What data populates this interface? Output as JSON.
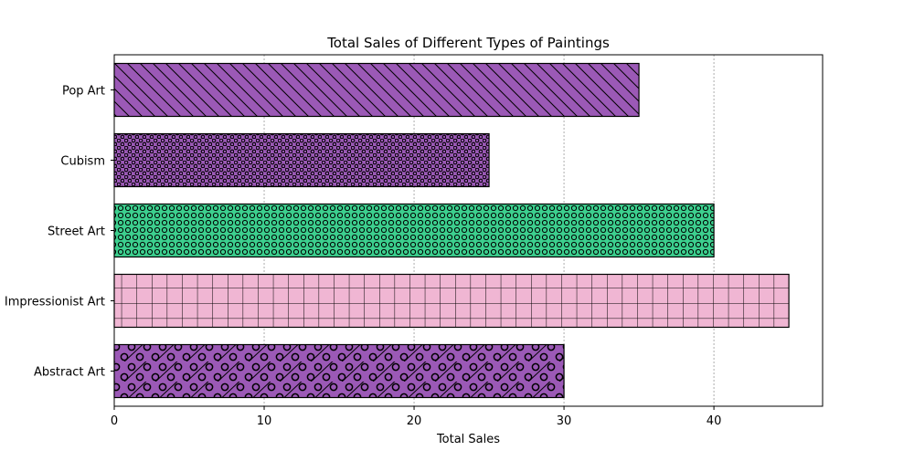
{
  "chart_data": {
    "type": "bar",
    "orientation": "horizontal",
    "title": "Total Sales of Different Types of Paintings",
    "xlabel": "Total Sales",
    "ylabel": "",
    "xlim": [
      0,
      47.25
    ],
    "x_ticks": [
      0,
      10,
      20,
      30,
      40
    ],
    "grid": "x-axis, dashed",
    "legend": "none",
    "categories": [
      "Abstract Art",
      "Impressionist Art",
      "Street Art",
      "Cubism",
      "Pop Art"
    ],
    "values": [
      30,
      45,
      40,
      25,
      35
    ],
    "bar_styles": [
      {
        "color": "#9b59b6",
        "hatch": "slash-circle"
      },
      {
        "color": "#f0b6d3",
        "hatch": "grid"
      },
      {
        "color": "#3ccf8e",
        "hatch": "ring-dense"
      },
      {
        "color": "#9b59b6",
        "hatch": "dot-dense"
      },
      {
        "color": "#9b59b6",
        "hatch": "backslash"
      }
    ]
  }
}
